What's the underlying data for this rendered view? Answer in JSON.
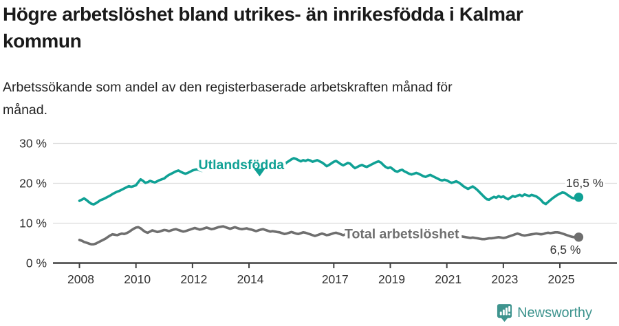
{
  "header": {
    "title": "Högre arbetslöshet bland utrikes- än inrikesfödda i Kalmar kommun",
    "subtitle": "Arbetssökande som andel av den registerbaserade arbetskraften månad för månad."
  },
  "chart_data": {
    "type": "line",
    "unit": "%",
    "frequency": "monthly",
    "x_start": "2008-01",
    "x_end": "2025-09",
    "ylim": [
      0,
      30
    ],
    "grid": "horizontal",
    "y_ticks": [
      {
        "value": 0,
        "label": "0 %"
      },
      {
        "value": 10,
        "label": "10 %"
      },
      {
        "value": 20,
        "label": "20 %"
      },
      {
        "value": 30,
        "label": "30 %"
      }
    ],
    "x_ticks": [
      {
        "year": 2008,
        "label": "2008"
      },
      {
        "year": 2010,
        "label": "2010"
      },
      {
        "year": 2012,
        "label": "2012"
      },
      {
        "year": 2014,
        "label": "2014"
      },
      {
        "year": 2017,
        "label": "2017"
      },
      {
        "year": 2019,
        "label": "2019"
      },
      {
        "year": 2021,
        "label": "2021"
      },
      {
        "year": 2023,
        "label": "2023"
      },
      {
        "year": 2025,
        "label": "2025"
      }
    ],
    "series": [
      {
        "name": "Utlandsfödda",
        "color": "#10a195",
        "end_label": "16,5 %",
        "end_value": 16.5,
        "values": [
          15.6,
          15.9,
          16.2,
          15.8,
          15.3,
          14.9,
          14.7,
          15.0,
          15.4,
          15.8,
          16.0,
          16.3,
          16.6,
          16.9,
          17.3,
          17.6,
          17.9,
          18.1,
          18.4,
          18.7,
          19.0,
          19.3,
          19.1,
          19.3,
          19.5,
          20.3,
          21.0,
          20.6,
          20.1,
          20.3,
          20.6,
          20.4,
          20.2,
          20.5,
          20.8,
          21.0,
          21.2,
          21.7,
          22.1,
          22.4,
          22.7,
          23.0,
          23.2,
          22.9,
          22.6,
          22.4,
          22.6,
          22.9,
          23.2,
          23.4,
          23.5,
          23.3,
          23.1,
          23.4,
          23.6,
          23.4,
          23.2,
          23.5,
          23.7,
          23.6,
          23.5,
          23.8,
          24.0,
          23.8,
          23.6,
          23.9,
          24.2,
          24.0,
          23.8,
          23.7,
          23.9,
          24.1,
          24.0,
          24.3,
          24.6,
          24.4,
          24.7,
          25.0,
          25.2,
          24.9,
          24.6,
          24.8,
          25.1,
          24.6,
          24.1,
          23.8,
          24.2,
          24.7,
          25.2,
          25.6,
          26.0,
          26.3,
          26.1,
          25.8,
          25.5,
          25.8,
          25.6,
          25.9,
          25.7,
          25.4,
          25.6,
          25.8,
          25.5,
          25.2,
          24.8,
          24.3,
          24.6,
          25.0,
          25.4,
          25.6,
          25.2,
          24.8,
          24.5,
          24.8,
          25.1,
          24.9,
          24.3,
          23.8,
          24.1,
          24.4,
          24.6,
          24.3,
          24.1,
          24.4,
          24.7,
          25.0,
          25.3,
          25.5,
          25.2,
          24.6,
          24.1,
          23.8,
          24.0,
          23.6,
          23.1,
          22.9,
          23.2,
          23.4,
          23.0,
          22.7,
          22.4,
          22.2,
          22.4,
          22.6,
          22.4,
          22.1,
          21.8,
          21.6,
          21.9,
          22.1,
          21.8,
          21.5,
          21.2,
          20.9,
          20.7,
          20.9,
          20.7,
          20.4,
          20.1,
          20.3,
          20.5,
          20.2,
          19.8,
          19.3,
          18.9,
          18.6,
          18.9,
          19.2,
          18.8,
          18.3,
          17.7,
          17.1,
          16.5,
          16.0,
          15.9,
          16.3,
          16.6,
          16.4,
          16.8,
          16.5,
          16.7,
          16.3,
          16.0,
          16.4,
          16.8,
          16.6,
          16.9,
          17.1,
          16.8,
          17.2,
          17.0,
          16.8,
          17.1,
          16.9,
          16.7,
          16.3,
          15.8,
          15.1,
          14.8,
          15.3,
          15.8,
          16.3,
          16.7,
          17.1,
          17.4,
          17.7,
          17.6,
          17.2,
          16.8,
          16.4,
          16.2,
          16.4,
          16.5
        ]
      },
      {
        "name": "Total arbetslöshet",
        "color": "#6f6f6f",
        "end_label": "6,5 %",
        "end_value": 6.5,
        "values": [
          5.8,
          5.6,
          5.3,
          5.1,
          4.9,
          4.7,
          4.7,
          4.9,
          5.2,
          5.5,
          5.8,
          6.1,
          6.5,
          6.9,
          7.2,
          7.1,
          7.0,
          7.2,
          7.4,
          7.3,
          7.5,
          7.8,
          8.2,
          8.6,
          8.9,
          9.0,
          8.7,
          8.2,
          7.8,
          7.6,
          7.9,
          8.2,
          8.0,
          7.8,
          7.9,
          8.1,
          8.3,
          8.2,
          8.0,
          8.2,
          8.4,
          8.5,
          8.3,
          8.1,
          7.9,
          8.0,
          8.2,
          8.4,
          8.6,
          8.8,
          8.6,
          8.4,
          8.5,
          8.7,
          8.9,
          8.7,
          8.5,
          8.6,
          8.8,
          9.0,
          9.1,
          9.2,
          9.0,
          8.8,
          8.6,
          8.8,
          9.0,
          8.8,
          8.6,
          8.5,
          8.6,
          8.7,
          8.5,
          8.4,
          8.2,
          8.0,
          8.2,
          8.4,
          8.5,
          8.3,
          8.1,
          7.9,
          8.0,
          7.9,
          7.8,
          7.7,
          7.5,
          7.3,
          7.4,
          7.6,
          7.8,
          7.6,
          7.4,
          7.3,
          7.5,
          7.7,
          7.6,
          7.4,
          7.2,
          7.0,
          6.8,
          7.0,
          7.2,
          7.4,
          7.2,
          7.0,
          7.1,
          7.3,
          7.5,
          7.6,
          7.4,
          7.2,
          7.0,
          7.2,
          7.3,
          7.1,
          6.9,
          6.8,
          6.9,
          7.0,
          6.9,
          6.8,
          6.6,
          6.5,
          6.4,
          6.5,
          6.7,
          6.6,
          6.4,
          6.3,
          6.4,
          6.6,
          6.7,
          6.6,
          6.5,
          6.4,
          6.5,
          6.7,
          6.8,
          6.7,
          6.6,
          6.5,
          6.7,
          6.9,
          7.0,
          7.1,
          7.4,
          7.8,
          8.0,
          8.1,
          8.0,
          7.9,
          7.8,
          7.6,
          7.5,
          7.6,
          7.5,
          7.4,
          7.2,
          7.0,
          6.9,
          6.8,
          6.7,
          6.6,
          6.5,
          6.4,
          6.3,
          6.4,
          6.3,
          6.2,
          6.1,
          6.0,
          6.0,
          6.1,
          6.2,
          6.2,
          6.3,
          6.4,
          6.5,
          6.4,
          6.3,
          6.4,
          6.6,
          6.8,
          7.0,
          7.2,
          7.4,
          7.2,
          7.0,
          6.9,
          7.0,
          7.1,
          7.2,
          7.3,
          7.4,
          7.3,
          7.2,
          7.3,
          7.5,
          7.6,
          7.5,
          7.6,
          7.7,
          7.7,
          7.6,
          7.4,
          7.2,
          7.0,
          6.8,
          6.6,
          6.5,
          6.4,
          6.5
        ]
      }
    ],
    "colors": {
      "grid": "#dcdcdc",
      "axis": "#404040",
      "tick_text": "#303030",
      "value_label_text": "#333333"
    }
  },
  "footer": {
    "brand": "Newsworthy",
    "brand_color": "#3e948e",
    "logo_icon": "speech-bubble-bar-chart-icon"
  }
}
